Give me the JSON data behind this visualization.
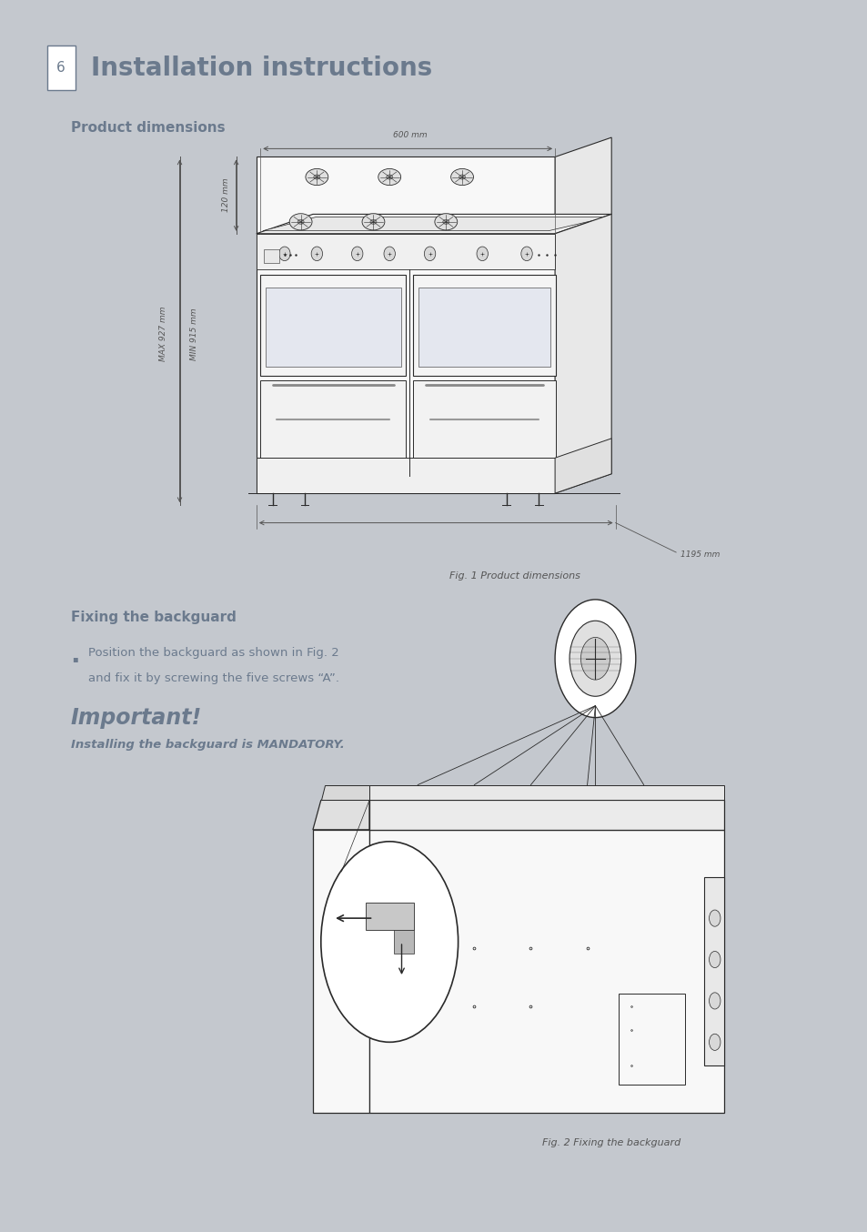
{
  "page_title": "Installation instructions",
  "page_number": "6",
  "bg_color": "#c4c8ce",
  "page_bg": "#ffffff",
  "title_color": "#6b7a8d",
  "dim_color": "#555555",
  "draw_color": "#2a2a2a",
  "section1_title": "Product dimensions",
  "section2_title": "Fixing the backguard",
  "bullet_text_line1": "Position the backguard as shown in Fig. 2",
  "bullet_text_line2": "and fix it by screwing the five screws “A”.",
  "important_title": "Important!",
  "important_subtitle": "Installing the backguard is MANDATORY.",
  "fig1_caption": "Fig. 1 Product dimensions",
  "fig2_caption": "Fig. 2 Fixing the backguard",
  "dim_600": "600 mm",
  "dim_120": "120 mm",
  "dim_max927": "MAX 927 mm",
  "dim_min915": "MIN 915 mm",
  "dim_1195": "1195 mm"
}
